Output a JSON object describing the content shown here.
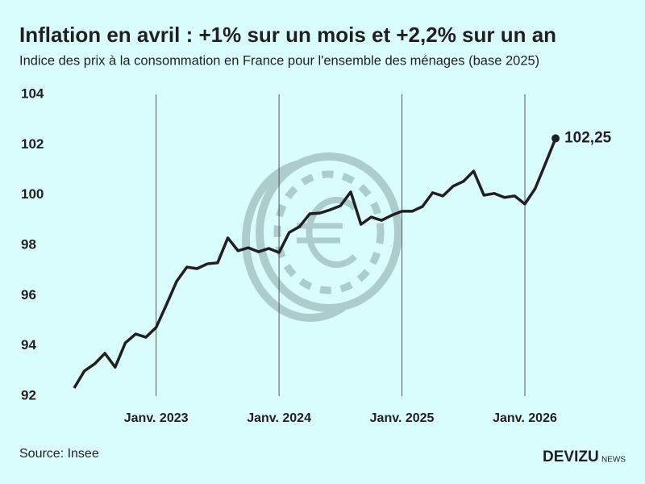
{
  "chart_data": {
    "type": "line",
    "title": "Inflation en avril : +1% sur un mois et +2,2% sur un an",
    "subtitle": "Indice des prix à la consommation en France pour l'ensemble des ménages (base 2025)",
    "categories": [
      null,
      null,
      null,
      null,
      null,
      null,
      null,
      null,
      "Janv. 2023",
      null,
      null,
      null,
      null,
      null,
      null,
      null,
      null,
      null,
      null,
      null,
      "Janv. 2024",
      null,
      null,
      null,
      null,
      null,
      null,
      null,
      null,
      null,
      null,
      null,
      "Janv. 2025",
      null,
      null,
      null,
      null,
      null,
      null,
      null,
      null,
      null,
      null,
      null,
      "Janv. 2026",
      null,
      null,
      null
    ],
    "series": [
      {
        "name": "Indice des prix",
        "color": "#231f20",
        "values": [
          92.32,
          93.0,
          93.28,
          93.7,
          93.15,
          94.12,
          94.47,
          94.34,
          94.73,
          95.63,
          96.56,
          97.13,
          97.07,
          97.26,
          97.3,
          98.29,
          97.78,
          97.9,
          97.74,
          97.87,
          97.71,
          98.51,
          98.74,
          99.25,
          99.28,
          99.41,
          99.57,
          100.12,
          98.83,
          99.12,
          98.99,
          99.19,
          99.35,
          99.35,
          99.54,
          100.09,
          99.96,
          100.35,
          100.54,
          100.95,
          99.99,
          100.06,
          99.9,
          99.96,
          99.64,
          100.25,
          101.24,
          102.25
        ],
        "value_labels": [
          null,
          null,
          null,
          null,
          null,
          null,
          null,
          null,
          null,
          null,
          null,
          null,
          null,
          null,
          null,
          null,
          null,
          null,
          null,
          null,
          null,
          null,
          null,
          null,
          null,
          null,
          null,
          null,
          null,
          null,
          null,
          null,
          null,
          null,
          null,
          null,
          null,
          null,
          null,
          null,
          null,
          null,
          null,
          null,
          null,
          null,
          null,
          "102,25"
        ]
      }
    ],
    "ylim": [
      92,
      104
    ],
    "yticks": [
      92,
      94,
      96,
      98,
      100,
      102,
      104
    ],
    "xgrid": true,
    "source": "Source: Insee",
    "brand": "DEVIZU",
    "brand_suffix": "NEWS"
  }
}
